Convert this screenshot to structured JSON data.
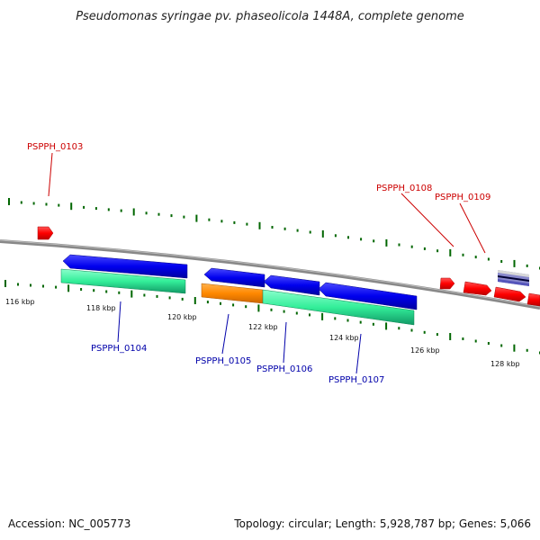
{
  "title": "Pseudomonas syringae pv. phaseolicola 1448A, complete genome",
  "footer": {
    "accession": "Accession: NC_005773",
    "summary": "Topology: circular; Length: 5,928,787 bp; Genes: 5,066"
  },
  "scale_labels": [
    "116 kbp",
    "118 kbp",
    "120 kbp",
    "122 kbp",
    "124 kbp",
    "126 kbp",
    "128 kbp"
  ],
  "gene_labels": {
    "forward": [
      "PSPPH_0103",
      "PSPPH_0108",
      "PSPPH_0109"
    ],
    "reverse": [
      "PSPPH_0104",
      "PSPPH_0105",
      "PSPPH_0106",
      "PSPPH_0107"
    ]
  },
  "colors": {
    "forward_cds": "#ff0000",
    "reverse_cds": "#0000ee",
    "rna_teal": "#33ee99",
    "rna_orange": "#ff8800",
    "backbone": "#777777",
    "ticks": "#006600",
    "forward_label": "#cc0000",
    "reverse_label": "#0000aa"
  }
}
